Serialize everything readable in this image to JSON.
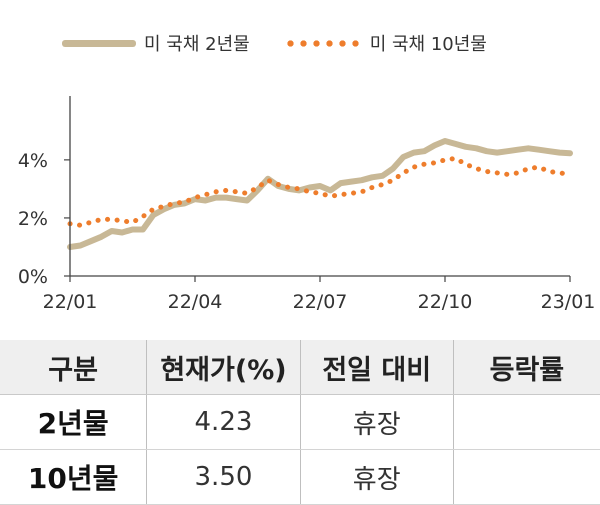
{
  "chart_data": {
    "type": "line",
    "legend": [
      {
        "name": "미 국채 2년물",
        "color": "#c8b896",
        "style": "solid"
      },
      {
        "name": "미 국채 10년물",
        "color": "#ee7d2c",
        "style": "dotted"
      }
    ],
    "x_ticks": [
      "22/01",
      "22/04",
      "22/07",
      "22/10",
      "23/01"
    ],
    "y_ticks": [
      "0%",
      "2%",
      "4%"
    ],
    "ylim": [
      0,
      6.2
    ],
    "xlim": [
      0,
      12
    ],
    "series": [
      {
        "name": "미 국채 2년물",
        "x": [
          0,
          0.25,
          0.5,
          0.75,
          1,
          1.25,
          1.5,
          1.75,
          2,
          2.25,
          2.5,
          2.75,
          3,
          3.25,
          3.5,
          3.75,
          4,
          4.25,
          4.5,
          4.75,
          5,
          5.25,
          5.5,
          5.75,
          6,
          6.25,
          6.5,
          6.75,
          7,
          7.25,
          7.5,
          7.75,
          8,
          8.25,
          8.5,
          8.75,
          9,
          9.25,
          9.5,
          9.75,
          10,
          10.25,
          10.5,
          10.75,
          11,
          11.25,
          11.5,
          11.75,
          12
        ],
        "values": [
          1.0,
          1.05,
          1.2,
          1.35,
          1.55,
          1.5,
          1.6,
          1.6,
          2.1,
          2.3,
          2.45,
          2.5,
          2.65,
          2.6,
          2.7,
          2.7,
          2.65,
          2.6,
          2.95,
          3.35,
          3.1,
          3.0,
          2.95,
          3.05,
          3.1,
          2.95,
          3.2,
          3.25,
          3.3,
          3.4,
          3.45,
          3.7,
          4.1,
          4.25,
          4.3,
          4.5,
          4.65,
          4.55,
          4.45,
          4.4,
          4.3,
          4.25,
          4.3,
          4.35,
          4.4,
          4.35,
          4.3,
          4.25,
          4.23
        ]
      },
      {
        "name": "미 국채 10년물",
        "x": [
          0,
          0.25,
          0.5,
          0.75,
          1,
          1.25,
          1.5,
          1.75,
          2,
          2.25,
          2.5,
          2.75,
          3,
          3.25,
          3.5,
          3.75,
          4,
          4.25,
          4.5,
          4.75,
          5,
          5.25,
          5.5,
          5.75,
          6,
          6.25,
          6.5,
          6.75,
          7,
          7.25,
          7.5,
          7.75,
          8,
          8.25,
          8.5,
          8.75,
          9,
          9.25,
          9.5,
          9.75,
          10,
          10.25,
          10.5,
          10.75,
          11,
          11.25,
          11.5,
          11.75,
          12
        ],
        "values": [
          1.8,
          1.75,
          1.85,
          1.95,
          1.95,
          1.9,
          1.85,
          2.05,
          2.3,
          2.4,
          2.5,
          2.55,
          2.7,
          2.8,
          2.9,
          2.95,
          2.9,
          2.85,
          3.05,
          3.3,
          3.15,
          3.05,
          3.0,
          2.9,
          2.85,
          2.75,
          2.8,
          2.85,
          2.9,
          3.05,
          3.15,
          3.3,
          3.55,
          3.75,
          3.85,
          3.9,
          4.0,
          4.05,
          3.85,
          3.7,
          3.6,
          3.55,
          3.5,
          3.55,
          3.7,
          3.75,
          3.6,
          3.55,
          3.5
        ]
      }
    ]
  },
  "table": {
    "headers": [
      "구분",
      "현재가(%)",
      "전일 대비",
      "등락률"
    ],
    "rows": [
      [
        "2년물",
        "4.23",
        "휴장",
        ""
      ],
      [
        "10년물",
        "3.50",
        "휴장",
        ""
      ]
    ]
  }
}
